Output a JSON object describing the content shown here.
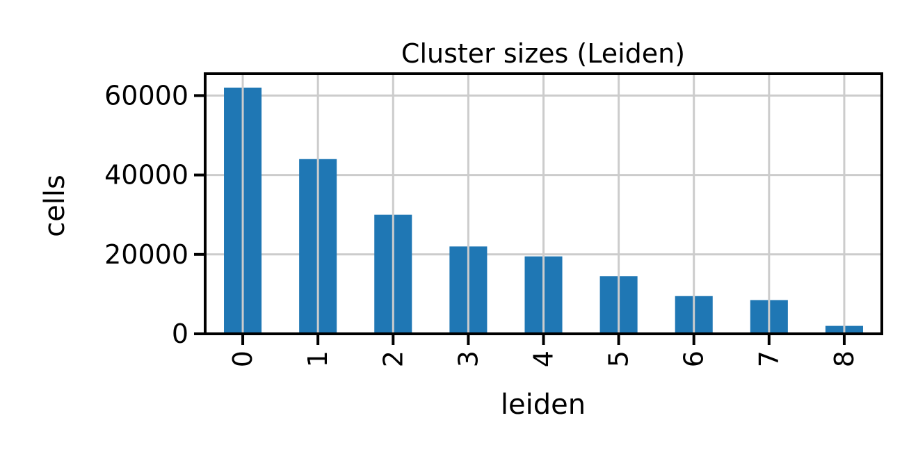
{
  "chart_data": {
    "type": "bar",
    "title": "Cluster sizes (Leiden)",
    "xlabel": "leiden",
    "ylabel": "cells",
    "categories": [
      "0",
      "1",
      "2",
      "3",
      "4",
      "5",
      "6",
      "7",
      "8"
    ],
    "values": [
      62000,
      44000,
      30000,
      22000,
      19500,
      14500,
      9500,
      8500,
      2000
    ],
    "ylim": [
      0,
      65500
    ],
    "yticks": [
      0,
      20000,
      40000,
      60000
    ],
    "ytick_labels": [
      "0",
      "20000",
      "40000",
      "60000"
    ],
    "grid": true,
    "x_tick_rotation": "vertical",
    "bar_color": "#1f77b4",
    "grid_color": "#cccccc",
    "axis_color": "#000000"
  }
}
